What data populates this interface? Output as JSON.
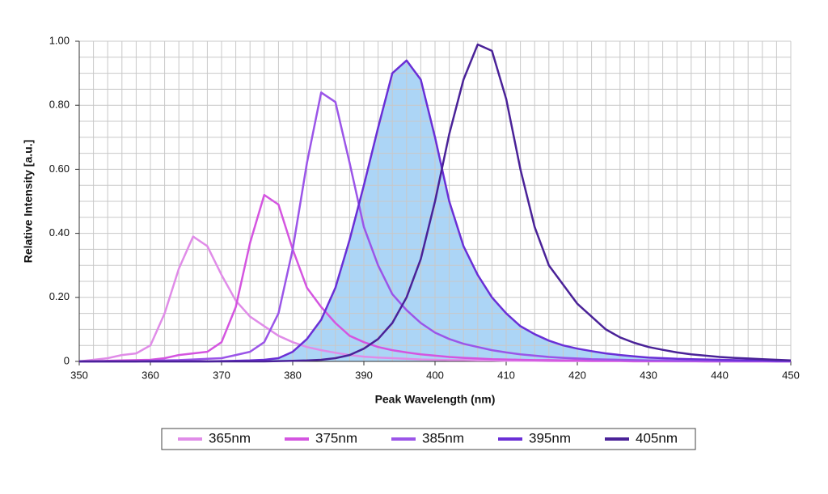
{
  "chart_data": {
    "type": "line",
    "x_label": "Peak Wavelength (nm)",
    "y_label": "Relative Intensity [a.u.]",
    "x": [
      350,
      352,
      354,
      356,
      358,
      360,
      362,
      364,
      366,
      368,
      370,
      372,
      374,
      376,
      378,
      380,
      382,
      384,
      386,
      388,
      390,
      392,
      394,
      396,
      398,
      400,
      402,
      404,
      406,
      408,
      410,
      412,
      414,
      416,
      418,
      420,
      422,
      424,
      426,
      428,
      430,
      432,
      434,
      436,
      438,
      440,
      442,
      444,
      446,
      448,
      450
    ],
    "series": [
      {
        "name": "365nm",
        "color": "#e08ce8",
        "values": [
          0,
          0.005,
          0.01,
          0.02,
          0.025,
          0.05,
          0.15,
          0.29,
          0.39,
          0.36,
          0.27,
          0.19,
          0.14,
          0.11,
          0.08,
          0.06,
          0.045,
          0.035,
          0.027,
          0.02,
          0.015,
          0.012,
          0.01,
          0.008,
          0.006,
          0.005,
          0.004,
          0.004,
          0.003,
          0.003,
          0.002,
          0.002,
          0.002,
          0.001,
          0.001,
          0.001,
          0.001,
          0.001,
          0.001,
          0,
          0,
          0,
          0,
          0,
          0,
          0,
          0,
          0,
          0,
          0,
          0
        ]
      },
      {
        "name": "375nm",
        "color": "#d455e0",
        "values": [
          0,
          0,
          0.002,
          0.003,
          0.004,
          0.005,
          0.01,
          0.02,
          0.025,
          0.03,
          0.06,
          0.17,
          0.37,
          0.52,
          0.49,
          0.35,
          0.23,
          0.17,
          0.12,
          0.08,
          0.06,
          0.045,
          0.035,
          0.028,
          0.022,
          0.018,
          0.014,
          0.011,
          0.009,
          0.007,
          0.006,
          0.005,
          0.004,
          0.004,
          0.003,
          0.003,
          0.002,
          0.002,
          0.002,
          0.001,
          0.001,
          0.001,
          0.001,
          0.001,
          0,
          0,
          0,
          0,
          0,
          0,
          0
        ]
      },
      {
        "name": "385nm",
        "color": "#9b55e8",
        "values": [
          0,
          0,
          0,
          0,
          0,
          0.002,
          0.003,
          0.004,
          0.006,
          0.008,
          0.01,
          0.02,
          0.03,
          0.06,
          0.15,
          0.35,
          0.62,
          0.84,
          0.81,
          0.62,
          0.42,
          0.3,
          0.21,
          0.16,
          0.12,
          0.09,
          0.07,
          0.055,
          0.045,
          0.035,
          0.028,
          0.022,
          0.018,
          0.014,
          0.011,
          0.009,
          0.007,
          0.006,
          0.005,
          0.004,
          0.003,
          0.003,
          0.002,
          0.002,
          0.002,
          0.001,
          0.001,
          0.001,
          0.001,
          0,
          0
        ]
      },
      {
        "name": "395nm",
        "color": "#6a2fd6",
        "fill": "#acd5f6",
        "values": [
          0,
          0,
          0,
          0,
          0,
          0,
          0,
          0,
          0,
          0,
          0.001,
          0.002,
          0.003,
          0.005,
          0.01,
          0.03,
          0.07,
          0.13,
          0.23,
          0.38,
          0.55,
          0.73,
          0.9,
          0.94,
          0.88,
          0.7,
          0.5,
          0.36,
          0.27,
          0.2,
          0.15,
          0.11,
          0.085,
          0.065,
          0.05,
          0.04,
          0.032,
          0.025,
          0.02,
          0.016,
          0.012,
          0.01,
          0.008,
          0.007,
          0.006,
          0.005,
          0.004,
          0.003,
          0.003,
          0.002,
          0.002
        ]
      },
      {
        "name": "405nm",
        "color": "#4a2298",
        "values": [
          0,
          0,
          0,
          0,
          0,
          0,
          0,
          0,
          0,
          0,
          0,
          0,
          0,
          0,
          0.001,
          0.002,
          0.003,
          0.005,
          0.01,
          0.02,
          0.04,
          0.07,
          0.12,
          0.2,
          0.32,
          0.5,
          0.71,
          0.88,
          0.99,
          0.97,
          0.82,
          0.6,
          0.42,
          0.3,
          0.24,
          0.18,
          0.14,
          0.1,
          0.075,
          0.058,
          0.045,
          0.036,
          0.028,
          0.022,
          0.018,
          0.014,
          0.011,
          0.009,
          0.007,
          0.005,
          0.003
        ]
      }
    ],
    "xlim": [
      350,
      450
    ],
    "ylim": [
      0,
      1
    ],
    "xticks": [
      350,
      360,
      370,
      380,
      390,
      400,
      410,
      420,
      430,
      440,
      450
    ],
    "yticks": [
      0,
      {
        "value": 0.2,
        "label": "0.20"
      },
      {
        "value": 0.4,
        "label": "0.40"
      },
      {
        "value": 0.6,
        "label": "0.60"
      },
      {
        "value": 0.8,
        "label": "0.80"
      },
      {
        "value": 1,
        "label": "1.00"
      }
    ],
    "xgrid": [
      350,
      352,
      354,
      356,
      358,
      360,
      362,
      364,
      366,
      368,
      370,
      372,
      374,
      376,
      378,
      380,
      382,
      384,
      386,
      388,
      390,
      392,
      394,
      396,
      398,
      400,
      402,
      404,
      406,
      408,
      410,
      412,
      414,
      416,
      418,
      420,
      422,
      424,
      426,
      428,
      430,
      432,
      434,
      436,
      438,
      440,
      442,
      444,
      446,
      448,
      450
    ],
    "ygrid": [
      0,
      0.05,
      0.1,
      0.15,
      0.2,
      0.25,
      0.3,
      0.35,
      0.4,
      0.45,
      0.5,
      0.55,
      0.6,
      0.65,
      0.7,
      0.75,
      0.8,
      0.85,
      0.9,
      0.95,
      1
    ],
    "grid": true,
    "legend": "bottom"
  }
}
